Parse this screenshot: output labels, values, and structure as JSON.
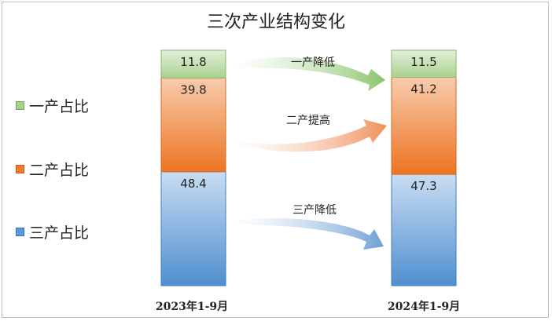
{
  "chart_data": {
    "type": "bar",
    "stacked": true,
    "normalized": true,
    "title": "三次产业结构变化",
    "categories": [
      "2023年1-9月",
      "2024年1-9月"
    ],
    "series": [
      {
        "name": "三产占比",
        "values": [
          48.4,
          47.3
        ],
        "color": "#5b9bd5"
      },
      {
        "name": "二产占比",
        "values": [
          39.8,
          41.2
        ],
        "color": "#ed7d31"
      },
      {
        "name": "一产占比",
        "values": [
          11.8,
          11.5
        ],
        "color": "#a9d18e"
      }
    ],
    "legend_position": "left",
    "legend_order": [
      "一产占比",
      "二产占比",
      "三产占比"
    ],
    "annotations": [
      {
        "text": "一产降低",
        "series": "一产占比",
        "arrow_color": "#a9d18e"
      },
      {
        "text": "二产提高",
        "series": "二产占比",
        "arrow_color": "#f4a582"
      },
      {
        "text": "三产降低",
        "series": "三产占比",
        "arrow_color": "#8fb4dc"
      }
    ]
  }
}
